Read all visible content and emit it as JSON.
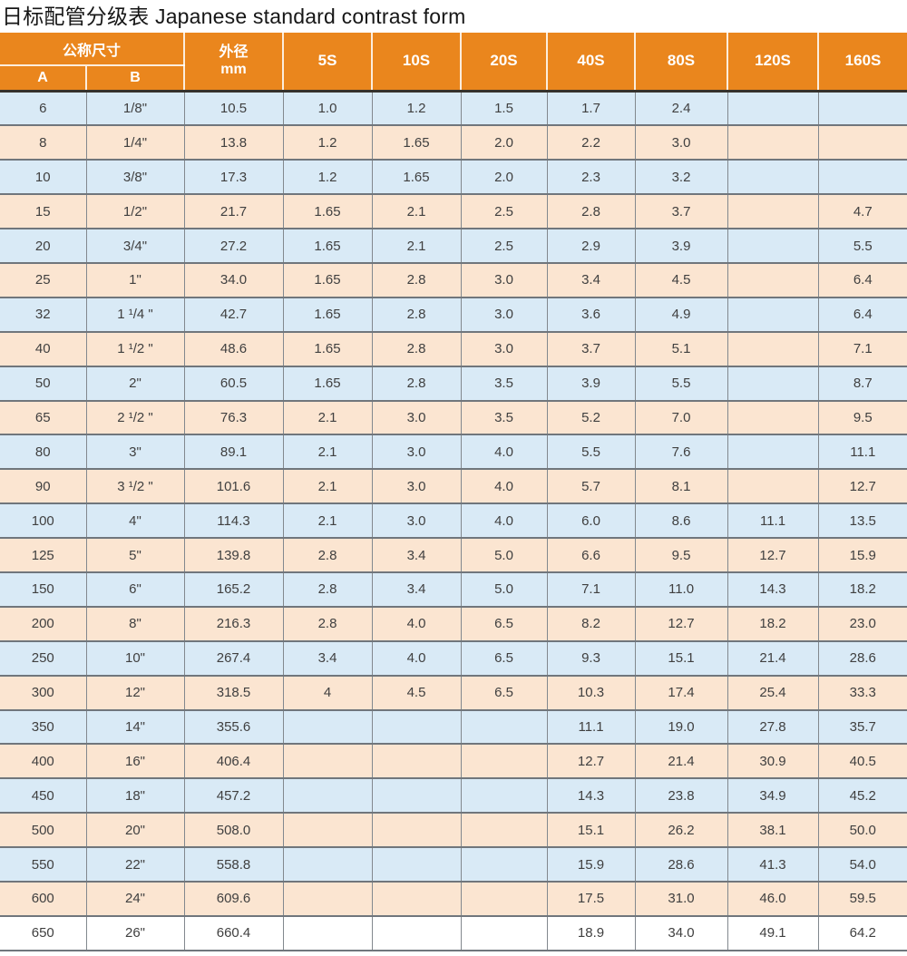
{
  "title": "日标配管分级表 Japanese standard contrast form",
  "colors": {
    "header_bg": "#EA861D",
    "header_text": "#FFFFFF",
    "row_blue": "#D9EAF6",
    "row_peach": "#FBE5D1",
    "row_last": "#FFFFFF",
    "grid_v": "#82888E",
    "grid_h": "#70767C",
    "header_underline": "#36322C",
    "cell_text": "#404040"
  },
  "chart_data": {
    "type": "table",
    "title": "日标配管分级表 Japanese standard contrast form",
    "header": {
      "nominal_size": "公称尺寸",
      "col_a": "A",
      "col_b": "B",
      "outer_diameter_line1": "外径",
      "outer_diameter_line2": "mm",
      "schedules": [
        "5S",
        "10S",
        "20S",
        "40S",
        "80S",
        "120S",
        "160S"
      ]
    },
    "columns": [
      "A",
      "B",
      "外径 mm",
      "5S",
      "10S",
      "20S",
      "40S",
      "80S",
      "120S",
      "160S"
    ],
    "rows": [
      [
        "6",
        "1/8\"",
        "10.5",
        "1.0",
        "1.2",
        "1.5",
        "1.7",
        "2.4",
        "",
        ""
      ],
      [
        "8",
        "1/4\"",
        "13.8",
        "1.2",
        "1.65",
        "2.0",
        "2.2",
        "3.0",
        "",
        ""
      ],
      [
        "10",
        "3/8\"",
        "17.3",
        "1.2",
        "1.65",
        "2.0",
        "2.3",
        "3.2",
        "",
        ""
      ],
      [
        "15",
        "1/2\"",
        "21.7",
        "1.65",
        "2.1",
        "2.5",
        "2.8",
        "3.7",
        "",
        "4.7"
      ],
      [
        "20",
        "3/4\"",
        "27.2",
        "1.65",
        "2.1",
        "2.5",
        "2.9",
        "3.9",
        "",
        "5.5"
      ],
      [
        "25",
        "1\"",
        "34.0",
        "1.65",
        "2.8",
        "3.0",
        "3.4",
        "4.5",
        "",
        "6.4"
      ],
      [
        "32",
        "1 ¹/4 \"",
        "42.7",
        "1.65",
        "2.8",
        "3.0",
        "3.6",
        "4.9",
        "",
        "6.4"
      ],
      [
        "40",
        "1 ¹/2 \"",
        "48.6",
        "1.65",
        "2.8",
        "3.0",
        "3.7",
        "5.1",
        "",
        "7.1"
      ],
      [
        "50",
        "2\"",
        "60.5",
        "1.65",
        "2.8",
        "3.5",
        "3.9",
        "5.5",
        "",
        "8.7"
      ],
      [
        "65",
        "2 ¹/2 \"",
        "76.3",
        "2.1",
        "3.0",
        "3.5",
        "5.2",
        "7.0",
        "",
        "9.5"
      ],
      [
        "80",
        "3\"",
        "89.1",
        "2.1",
        "3.0",
        "4.0",
        "5.5",
        "7.6",
        "",
        "11.1"
      ],
      [
        "90",
        "3 ¹/2 \"",
        "101.6",
        "2.1",
        "3.0",
        "4.0",
        "5.7",
        "8.1",
        "",
        "12.7"
      ],
      [
        "100",
        "4\"",
        "114.3",
        "2.1",
        "3.0",
        "4.0",
        "6.0",
        "8.6",
        "11.1",
        "13.5"
      ],
      [
        "125",
        "5\"",
        "139.8",
        "2.8",
        "3.4",
        "5.0",
        "6.6",
        "9.5",
        "12.7",
        "15.9"
      ],
      [
        "150",
        "6\"",
        "165.2",
        "2.8",
        "3.4",
        "5.0",
        "7.1",
        "11.0",
        "14.3",
        "18.2"
      ],
      [
        "200",
        "8\"",
        "216.3",
        "2.8",
        "4.0",
        "6.5",
        "8.2",
        "12.7",
        "18.2",
        "23.0"
      ],
      [
        "250",
        "10\"",
        "267.4",
        "3.4",
        "4.0",
        "6.5",
        "9.3",
        "15.1",
        "21.4",
        "28.6"
      ],
      [
        "300",
        "12\"",
        "318.5",
        "4",
        "4.5",
        "6.5",
        "10.3",
        "17.4",
        "25.4",
        "33.3"
      ],
      [
        "350",
        "14\"",
        "355.6",
        "",
        "",
        "",
        "11.1",
        "19.0",
        "27.8",
        "35.7"
      ],
      [
        "400",
        "16\"",
        "406.4",
        "",
        "",
        "",
        "12.7",
        "21.4",
        "30.9",
        "40.5"
      ],
      [
        "450",
        "18\"",
        "457.2",
        "",
        "",
        "",
        "14.3",
        "23.8",
        "34.9",
        "45.2"
      ],
      [
        "500",
        "20\"",
        "508.0",
        "",
        "",
        "",
        "15.1",
        "26.2",
        "38.1",
        "50.0"
      ],
      [
        "550",
        "22\"",
        "558.8",
        "",
        "",
        "",
        "15.9",
        "28.6",
        "41.3",
        "54.0"
      ],
      [
        "600",
        "24\"",
        "609.6",
        "",
        "",
        "",
        "17.5",
        "31.0",
        "46.0",
        "59.5"
      ],
      [
        "650",
        "26\"",
        "660.4",
        "",
        "",
        "",
        "18.9",
        "34.0",
        "49.1",
        "64.2"
      ]
    ]
  }
}
